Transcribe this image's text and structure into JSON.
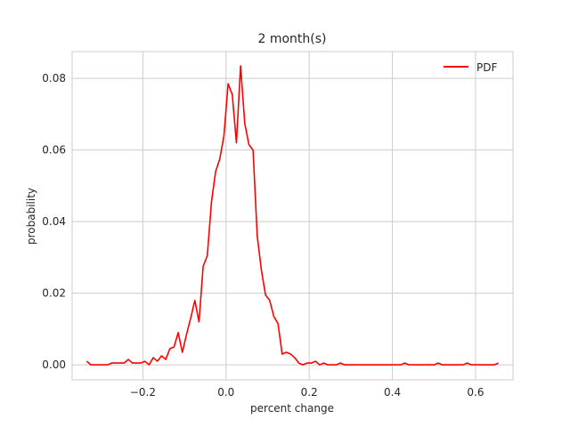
{
  "chart_data": {
    "type": "line",
    "title": "2 month(s)",
    "xlabel": "percent change",
    "ylabel": "probability",
    "xlim": [
      -0.37,
      0.69
    ],
    "ylim": [
      -0.0042,
      0.0875
    ],
    "xticks": [
      -0.2,
      0.0,
      0.2,
      0.4,
      0.6
    ],
    "xtick_labels": [
      "−0.2",
      "0.0",
      "0.2",
      "0.4",
      "0.6"
    ],
    "yticks": [
      0.0,
      0.02,
      0.04,
      0.06,
      0.08
    ],
    "ytick_labels": [
      "0.00",
      "0.02",
      "0.04",
      "0.06",
      "0.08"
    ],
    "grid": true,
    "legend_position": "top-right",
    "series": [
      {
        "name": "PDF",
        "color": "#ff0000",
        "x": [
          -0.335,
          -0.325,
          -0.315,
          -0.305,
          -0.295,
          -0.285,
          -0.275,
          -0.265,
          -0.255,
          -0.245,
          -0.235,
          -0.225,
          -0.215,
          -0.205,
          -0.195,
          -0.185,
          -0.175,
          -0.165,
          -0.155,
          -0.145,
          -0.135,
          -0.125,
          -0.115,
          -0.105,
          -0.095,
          -0.085,
          -0.075,
          -0.065,
          -0.055,
          -0.045,
          -0.035,
          -0.025,
          -0.015,
          -0.005,
          0.005,
          0.015,
          0.025,
          0.035,
          0.045,
          0.055,
          0.065,
          0.075,
          0.085,
          0.095,
          0.105,
          0.115,
          0.125,
          0.135,
          0.145,
          0.155,
          0.165,
          0.175,
          0.185,
          0.195,
          0.205,
          0.215,
          0.225,
          0.235,
          0.245,
          0.255,
          0.265,
          0.275,
          0.285,
          0.3,
          0.35,
          0.4,
          0.42,
          0.43,
          0.44,
          0.5,
          0.51,
          0.52,
          0.57,
          0.58,
          0.59,
          0.645,
          0.655
        ],
        "y": [
          0.001,
          0.0,
          0.0,
          0.0,
          0.0,
          0.0,
          0.0005,
          0.0005,
          0.0005,
          0.0005,
          0.0015,
          0.0005,
          0.0005,
          0.0005,
          0.001,
          0.0,
          0.002,
          0.001,
          0.0025,
          0.0015,
          0.0045,
          0.005,
          0.009,
          0.0035,
          0.0085,
          0.013,
          0.018,
          0.012,
          0.0275,
          0.0305,
          0.0455,
          0.054,
          0.0575,
          0.064,
          0.0785,
          0.0755,
          0.062,
          0.0835,
          0.0675,
          0.0615,
          0.06,
          0.036,
          0.0265,
          0.0195,
          0.018,
          0.0135,
          0.0115,
          0.003,
          0.0035,
          0.003,
          0.002,
          0.0005,
          0.0,
          0.0005,
          0.0005,
          0.001,
          0.0,
          0.0005,
          0.0,
          0.0,
          0.0,
          0.0005,
          0.0,
          0.0,
          0.0,
          0.0,
          0.0,
          0.0005,
          0.0,
          0.0,
          0.0005,
          0.0,
          0.0,
          0.0005,
          0.0,
          0.0,
          0.0005
        ]
      }
    ]
  }
}
